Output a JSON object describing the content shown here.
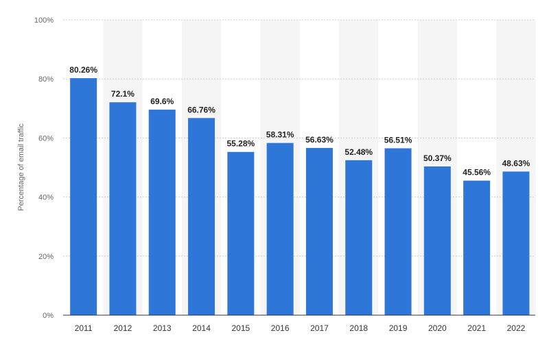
{
  "chart_data": {
    "type": "bar",
    "title": "",
    "xlabel": "",
    "ylabel": "Percentage of email traffic",
    "ylim": [
      0,
      100
    ],
    "yticks": [
      0,
      20,
      40,
      60,
      80,
      100
    ],
    "ytick_labels": [
      "0%",
      "20%",
      "40%",
      "60%",
      "80%",
      "100%"
    ],
    "categories": [
      "2011",
      "2012",
      "2013",
      "2014",
      "2015",
      "2016",
      "2017",
      "2018",
      "2019",
      "2020",
      "2021",
      "2022"
    ],
    "values": [
      80.26,
      72.1,
      69.6,
      66.76,
      55.28,
      58.31,
      56.63,
      52.48,
      56.51,
      50.37,
      45.56,
      48.63
    ],
    "value_labels": [
      "80.26%",
      "72.1%",
      "69.6%",
      "66.76%",
      "55.28%",
      "58.31%",
      "56.63%",
      "52.48%",
      "56.51%",
      "50.37%",
      "45.56%",
      "48.63%"
    ],
    "grid": true,
    "legend": "none",
    "colors": {
      "bar": "#2f76d9",
      "band": "#f5f5f5",
      "grid": "#cccccc",
      "axis": "#333333"
    }
  }
}
